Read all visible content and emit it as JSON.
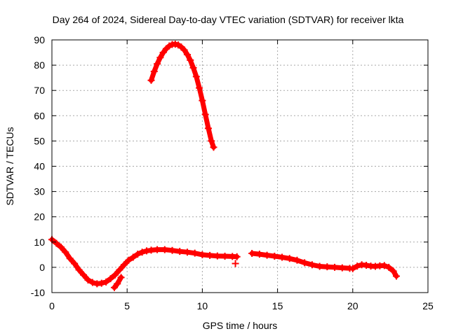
{
  "chart_data": {
    "type": "scatter",
    "title": "Day 264 of 2024, Sidereal Day-to-day VTEC variation (SDTVAR) for receiver lkta",
    "xlabel": "GPS time / hours",
    "ylabel": "SDTVAR / TECUs",
    "xlim": [
      0,
      25
    ],
    "ylim": [
      -10,
      90
    ],
    "x_ticks": [
      0,
      5,
      10,
      15,
      20,
      25
    ],
    "y_ticks": [
      -10,
      0,
      10,
      20,
      30,
      40,
      50,
      60,
      70,
      80,
      90
    ],
    "grid": true,
    "marker": "+",
    "color": "#ff0000",
    "series": [
      {
        "name": "sdtvar-low-segment-1",
        "x": [
          0,
          0.3,
          0.6,
          0.9,
          1.2,
          1.5,
          1.8,
          2.1,
          2.4,
          2.7,
          3.0,
          3.3,
          3.6,
          3.9,
          4.2,
          4.5,
          4.8,
          5.1,
          5.4,
          5.7,
          6.0,
          6.3,
          6.6,
          7.0,
          7.5,
          8.0,
          8.5,
          9.0,
          9.5,
          10.0,
          10.5,
          11.0,
          11.5,
          12.0,
          12.3
        ],
        "y": [
          11,
          9.5,
          8,
          6,
          3.5,
          1.5,
          -1,
          -3,
          -5,
          -6,
          -6.5,
          -6.3,
          -5.8,
          -4.5,
          -3,
          -1,
          1,
          2.8,
          4,
          5.2,
          6,
          6.5,
          6.8,
          7,
          7,
          6.7,
          6.3,
          6,
          5.6,
          5,
          4.7,
          4.5,
          4.4,
          4.3,
          4.2
        ]
      },
      {
        "name": "sdtvar-dip-spike",
        "x": [
          4.15,
          4.35,
          4.6
        ],
        "y": [
          -8,
          -6.5,
          -4
        ]
      },
      {
        "name": "sdtvar-isolated-point",
        "x": [
          12.2
        ],
        "y": [
          1.5
        ]
      },
      {
        "name": "sdtvar-low-segment-2",
        "x": [
          13.3,
          13.8,
          14.3,
          14.8,
          15.3,
          15.8,
          16.3,
          16.8,
          17.3,
          17.8,
          18.3,
          18.8,
          19.3,
          19.8
        ],
        "y": [
          5.5,
          5.2,
          4.8,
          4.4,
          4.0,
          3.5,
          2.8,
          1.8,
          1.0,
          0.4,
          0.2,
          0.0,
          -0.2,
          -0.4
        ]
      },
      {
        "name": "sdtvar-low-segment-3",
        "x": [
          20.0,
          20.3,
          20.6,
          20.9,
          21.2,
          21.5,
          21.8,
          22.1,
          22.4,
          22.7,
          22.9
        ],
        "y": [
          -0.5,
          0.5,
          1.0,
          0.8,
          0.5,
          0.4,
          0.6,
          0.7,
          0.0,
          -1.5,
          -3.5
        ]
      },
      {
        "name": "sdtvar-high-arc",
        "x": [
          6.6,
          6.8,
          7.0,
          7.2,
          7.4,
          7.6,
          7.8,
          8.0,
          8.2,
          8.4,
          8.6,
          8.8,
          9.0,
          9.2,
          9.4,
          9.6,
          9.8,
          10.0,
          10.2,
          10.4,
          10.6,
          10.75
        ],
        "y": [
          74,
          77.5,
          80.5,
          83,
          85,
          86.5,
          87.6,
          88.2,
          88.3,
          88,
          87.2,
          86,
          84.2,
          82,
          79,
          75.5,
          71,
          66,
          60.5,
          55,
          50,
          47.5
        ]
      }
    ]
  }
}
